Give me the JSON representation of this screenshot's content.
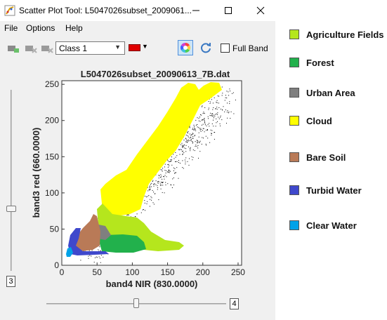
{
  "window": {
    "title": "Scatter Plot Tool: L5047026subset_2009061...",
    "controls": {
      "minimize": "–",
      "maximize": "☐",
      "close": "✕"
    }
  },
  "menu": [
    "File",
    "Options",
    "Help"
  ],
  "toolbar": {
    "class_select": "Class 1",
    "class_color": "#e00000",
    "full_band_label": "Full Band",
    "full_band_checked": false
  },
  "chart_data": {
    "type": "scatter",
    "title": "L5047026subset_20090613_7B.dat",
    "xlabel": "band4 NIR (830.0000)",
    "ylabel": "band3 red (660.0000)",
    "xlim": [
      0,
      255
    ],
    "ylim": [
      0,
      255
    ],
    "xticks": [
      0,
      50,
      100,
      150,
      200,
      250
    ],
    "yticks": [
      0,
      50,
      100,
      150,
      200,
      250
    ],
    "point_color": "#000000",
    "regions": [
      {
        "class": "Cloud",
        "color": "#ffff00"
      },
      {
        "class": "Agriculture Fields",
        "color": "#b5e61d"
      },
      {
        "class": "Forest",
        "color": "#22b14c"
      },
      {
        "class": "Urban Area",
        "color": "#7f7f7f"
      },
      {
        "class": "Bare Soil",
        "color": "#b97a57"
      },
      {
        "class": "Turbid Water",
        "color": "#3f48cc"
      },
      {
        "class": "Clear Water",
        "color": "#00a2e8"
      }
    ]
  },
  "sliders": {
    "vertical_value": "3",
    "horizontal_value": "4"
  },
  "legend": [
    {
      "label": "Agriculture Fields",
      "color": "#b5e61d"
    },
    {
      "label": "Forest",
      "color": "#22b14c"
    },
    {
      "label": "Urban Area",
      "color": "#7f7f7f"
    },
    {
      "label": "Cloud",
      "color": "#ffff00"
    },
    {
      "label": "Bare Soil",
      "color": "#b97a57"
    },
    {
      "label": "Turbid Water",
      "color": "#3f48cc"
    },
    {
      "label": "Clear Water",
      "color": "#00a2e8"
    }
  ]
}
